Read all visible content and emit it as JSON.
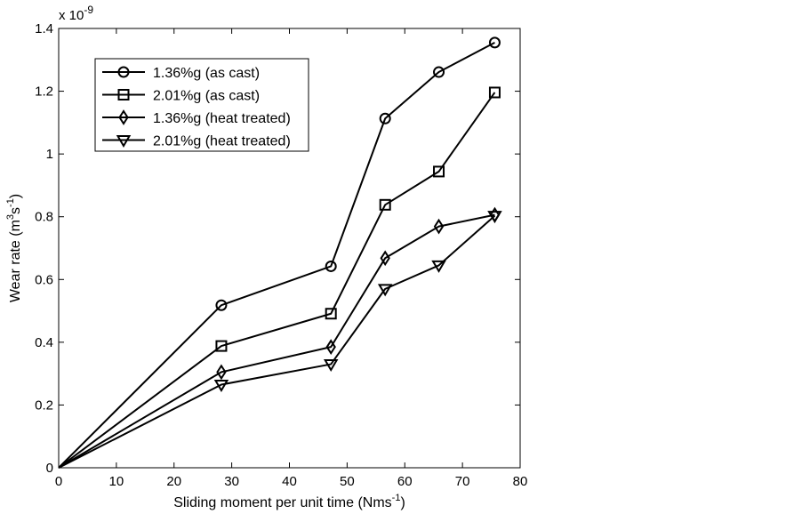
{
  "chart_data": {
    "type": "line",
    "xlabel": "Sliding moment per unit time (Nms",
    "xlabel_sup": "-1",
    "xlabel_end": ")",
    "ylabel": "Wear rate (m",
    "ylabel_sup1": "3",
    "ylabel_mid": "s",
    "ylabel_sup2": "-1",
    "ylabel_end": ")",
    "exponent_base": "x 10",
    "exponent_power": "-9",
    "xlim": [
      0,
      80
    ],
    "ylim": [
      0,
      1.4
    ],
    "xticks": [
      0,
      10,
      20,
      30,
      40,
      50,
      60,
      70,
      80
    ],
    "yticks": [
      0,
      0.2,
      0.4,
      0.6,
      0.8,
      1,
      1.2,
      1.4
    ],
    "xtick_labels": [
      "0",
      "10",
      "20",
      "30",
      "40",
      "50",
      "60",
      "70",
      "80"
    ],
    "ytick_labels": [
      "0",
      "0.2",
      "0.4",
      "0.6",
      "0.8",
      "1",
      "1.2",
      "1.4"
    ],
    "grid": false,
    "legend_position": "top-left",
    "x": [
      0,
      28.2,
      47.2,
      56.6,
      65.9,
      75.6
    ],
    "series": [
      {
        "name": "1.36%g (as cast)",
        "marker": "circle",
        "values": [
          0,
          0.518,
          0.642,
          1.113,
          1.261,
          1.355
        ]
      },
      {
        "name": "2.01%g (as cast)",
        "marker": "square",
        "values": [
          0,
          0.388,
          0.491,
          0.838,
          0.944,
          1.196
        ]
      },
      {
        "name": "1.36%g (heat treated)",
        "marker": "diamond",
        "values": [
          0,
          0.305,
          0.385,
          0.668,
          0.769,
          0.806
        ]
      },
      {
        "name": "2.01%g (heat treated)",
        "marker": "triangle-down",
        "values": [
          0,
          0.265,
          0.33,
          0.57,
          0.645,
          0.803
        ]
      }
    ]
  }
}
